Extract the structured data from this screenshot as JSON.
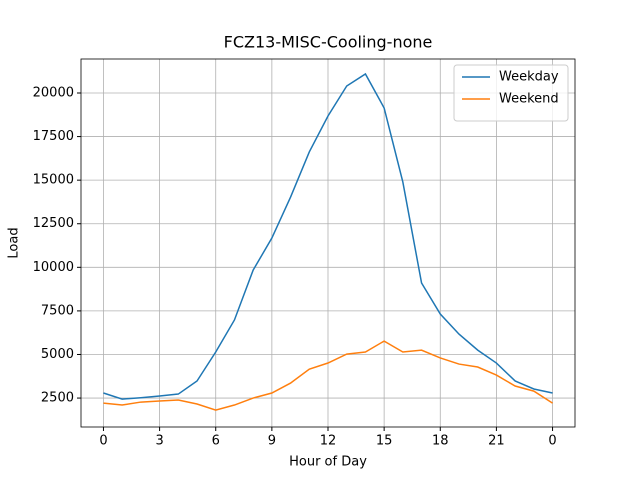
{
  "chart_data": {
    "type": "line",
    "title": "FCZ13-MISC-Cooling-none",
    "xlabel": "Hour of Day",
    "ylabel": "Load",
    "x": [
      0,
      1,
      2,
      3,
      4,
      5,
      6,
      7,
      8,
      9,
      10,
      11,
      12,
      13,
      14,
      15,
      16,
      17,
      18,
      19,
      20,
      21,
      22,
      23,
      24
    ],
    "series": [
      {
        "name": "Weekday",
        "color": "#1f77b4",
        "values": [
          2790,
          2440,
          2520,
          2620,
          2730,
          3480,
          5140,
          6980,
          9840,
          11680,
          14030,
          16620,
          18680,
          20400,
          21090,
          19140,
          14890,
          9100,
          7320,
          6170,
          5250,
          4510,
          3480,
          3020,
          2790
        ]
      },
      {
        "name": "Weekend",
        "color": "#ff7f0e",
        "values": [
          2210,
          2100,
          2270,
          2330,
          2390,
          2160,
          1810,
          2100,
          2500,
          2790,
          3360,
          4160,
          4510,
          5020,
          5140,
          5770,
          5140,
          5250,
          4800,
          4450,
          4280,
          3820,
          3190,
          2900,
          2210
        ]
      }
    ],
    "xlim": [
      -1.2,
      25.2
    ],
    "xticks": [
      0,
      3,
      6,
      9,
      12,
      15,
      18,
      21,
      {
        "value": 24,
        "label": "0"
      }
    ],
    "ylim": [
      840,
      21950
    ],
    "yticks": [
      2500,
      5000,
      7500,
      10000,
      12500,
      15000,
      17500,
      20000
    ],
    "grid": true,
    "legend": "upper right"
  }
}
